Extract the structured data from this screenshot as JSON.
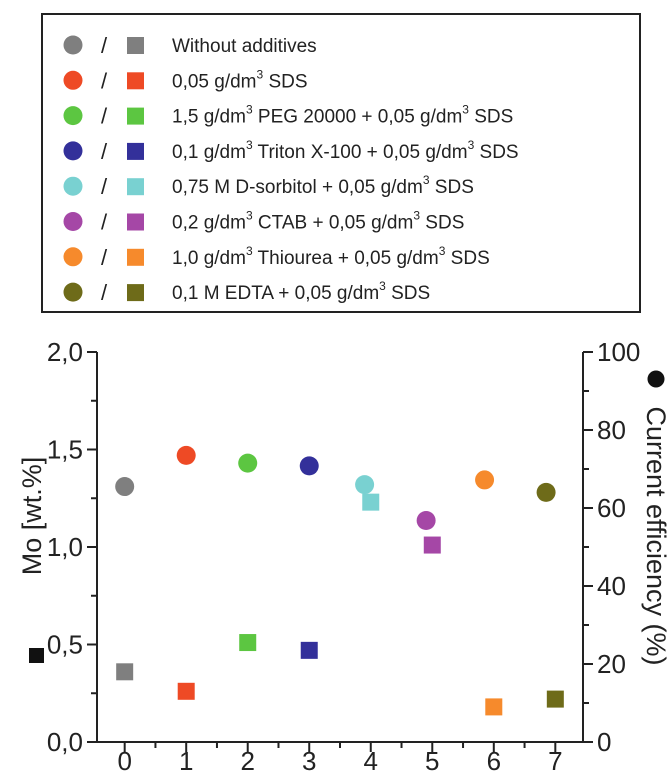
{
  "chart_data": {
    "type": "scatter",
    "x": [
      0,
      1,
      2,
      3,
      4,
      5,
      6,
      7
    ],
    "xticks": [
      "0",
      "1",
      "2",
      "3",
      "4",
      "5",
      "6",
      "7"
    ],
    "xlim": [
      -0.45,
      7.45
    ],
    "y_left": {
      "label": "Mo [wt.%]",
      "ticks": [
        "0,0",
        "0,5",
        "1,0",
        "1,5",
        "2,0"
      ],
      "tick_values": [
        0,
        0.5,
        1.0,
        1.5,
        2.0
      ],
      "ylim": [
        0,
        2.0
      ]
    },
    "y_right": {
      "label": "Current efficiency (%)",
      "ticks": [
        "0",
        "20",
        "40",
        "60",
        "80",
        "100"
      ],
      "tick_values": [
        0,
        20,
        40,
        60,
        80,
        100
      ],
      "ylim": [
        0,
        100
      ]
    },
    "legend": {
      "placement": "top",
      "entries": [
        {
          "text": "Without additives",
          "sup_parts": [],
          "color": "#7f7f7f"
        },
        {
          "text": "0,05 g/dm3 SDS",
          "sup_parts": [
            [
              "0,05 g/dm",
              "3",
              " SDS"
            ]
          ],
          "color": "#ee4a25"
        },
        {
          "text": "1,5 g/dm3 PEG 20000 + 0,05 g/dm3 SDS",
          "sup_parts": [
            [
              "1,5 g/dm",
              "3",
              " PEG 20000 + 0,05 g/dm",
              "3",
              " SDS"
            ]
          ],
          "color": "#5cc641"
        },
        {
          "text": "0,1 g/dm3 Triton X-100 + 0,05 g/dm3 SDS",
          "sup_parts": [
            [
              "0,1 g/dm",
              "3",
              " Triton X-100 + 0,05 g/dm",
              "3",
              " SDS"
            ]
          ],
          "color": "#33309a"
        },
        {
          "text": "0,75 M D-sorbitol + 0,05 g/dm3 SDS",
          "sup_parts": [
            [
              "0,75 M D-sorbitol + 0,05 g/dm",
              "3",
              " SDS"
            ]
          ],
          "color": "#79d1d1"
        },
        {
          "text": "0,2 g/dm3 CTAB + 0,05 g/dm3 SDS",
          "sup_parts": [
            [
              "0,2 g/dm",
              "3",
              " CTAB + 0,05 g/dm",
              "3",
              " SDS"
            ]
          ],
          "color": "#a547a6"
        },
        {
          "text": "1,0 g/dm3 Thiourea + 0,05 g/dm3 SDS",
          "sup_parts": [
            [
              "1,0 g/dm",
              "3",
              " Thiourea + 0,05 g/dm",
              "3",
              " SDS"
            ]
          ],
          "color": "#f68a2c"
        },
        {
          "text": "0,1 M EDTA + 0,05 g/dm3 SDS",
          "sup_parts": [
            [
              "0,1 M EDTA + 0,05 g/dm",
              "3",
              " SDS"
            ]
          ],
          "color": "#6e6b19"
        }
      ]
    },
    "series": [
      {
        "marker": "circle",
        "axis": "right",
        "x": [
          0,
          1,
          2,
          3,
          3.9,
          4.9,
          5.85,
          6.85
        ],
        "values": [
          65.5,
          73.5,
          71.5,
          70.8,
          66.0,
          56.8,
          67.2,
          64.0
        ]
      },
      {
        "marker": "square",
        "axis": "left",
        "x": [
          0,
          1,
          2,
          3,
          4,
          5,
          6,
          7
        ],
        "values": [
          0.36,
          0.26,
          0.51,
          0.47,
          1.23,
          1.01,
          0.18,
          0.22
        ]
      }
    ],
    "legend_symbol_colors": [
      "#7f7f7f",
      "#ee4a25",
      "#5cc641",
      "#33309a",
      "#79d1d1",
      "#a547a6",
      "#f68a2c",
      "#6e6b19"
    ],
    "grid": false
  }
}
